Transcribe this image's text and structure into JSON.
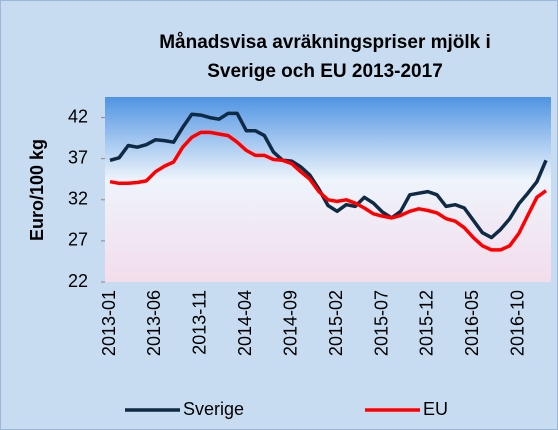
{
  "chart_data": {
    "type": "line",
    "title": [
      "Månadsvisa avräkningspriser mjölk i",
      "Sverige och EU 2013-2017"
    ],
    "y_label": "Euro/100 kg",
    "categories": [
      "2013-01",
      null,
      null,
      null,
      null,
      "2013-06",
      null,
      null,
      null,
      null,
      "2013-11",
      null,
      null,
      null,
      null,
      "2014-04",
      null,
      null,
      null,
      null,
      "2014-09",
      null,
      null,
      null,
      null,
      "2015-02",
      null,
      null,
      null,
      null,
      "2015-07",
      null,
      null,
      null,
      null,
      "2015-12",
      null,
      null,
      null,
      null,
      "2016-05",
      null,
      null,
      null,
      null,
      "2016-10",
      null,
      null,
      null
    ],
    "series": [
      {
        "name": "Sverige",
        "color": "#0f2a45",
        "values": [
          36.8,
          37.1,
          38.6,
          38.4,
          38.7,
          39.3,
          39.2,
          39.0,
          40.8,
          42.4,
          42.3,
          42.0,
          41.8,
          42.5,
          42.5,
          40.4,
          40.4,
          39.8,
          37.8,
          36.8,
          36.7,
          36.0,
          35.0,
          33.3,
          31.3,
          30.6,
          31.4,
          31.2,
          32.3,
          31.6,
          30.5,
          29.8,
          30.6,
          32.6,
          32.8,
          33.0,
          32.6,
          31.2,
          31.4,
          31.0,
          29.5,
          28.0,
          27.4,
          28.4,
          29.7,
          31.5,
          32.8,
          34.2,
          36.8
        ]
      },
      {
        "name": "EU",
        "color": "#ff0000",
        "values": [
          34.2,
          34.0,
          34.0,
          34.1,
          34.3,
          35.4,
          36.1,
          36.6,
          38.4,
          39.6,
          40.2,
          40.2,
          40.0,
          39.8,
          39.0,
          38.0,
          37.4,
          37.4,
          36.9,
          36.8,
          36.4,
          35.4,
          34.5,
          33.0,
          32.0,
          31.8,
          32.0,
          31.6,
          31.0,
          30.3,
          30.0,
          29.8,
          30.1,
          30.6,
          30.9,
          30.7,
          30.4,
          29.7,
          29.4,
          28.6,
          27.4,
          26.4,
          25.9,
          25.9,
          26.4,
          27.9,
          30.1,
          32.3,
          33.1
        ]
      }
    ],
    "ylim": [
      22,
      44.5
    ],
    "yticks": [
      22,
      27,
      32,
      37,
      42
    ],
    "grid": false,
    "legend": "bottom"
  }
}
